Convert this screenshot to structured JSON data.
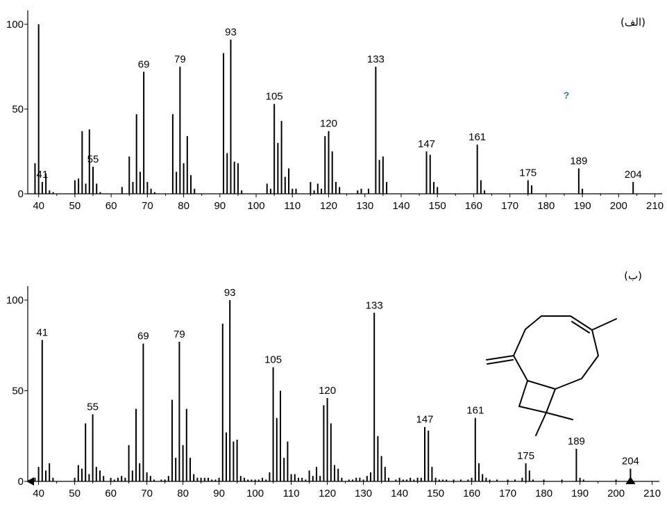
{
  "chart_data": [
    {
      "type": "bar",
      "panel_label": "(الف)",
      "annotation": "?",
      "annotation_color": "#2a8080",
      "bar_color": "#000000",
      "xlim": [
        37,
        212
      ],
      "ylim": [
        0,
        100
      ],
      "xticks": [
        40,
        50,
        60,
        70,
        80,
        90,
        100,
        110,
        120,
        130,
        140,
        150,
        160,
        170,
        180,
        190,
        200,
        210
      ],
      "yticks": [
        0,
        50,
        100
      ],
      "x": [
        39,
        40,
        41,
        42,
        43,
        44,
        50,
        51,
        52,
        53,
        54,
        55,
        56,
        57,
        63,
        65,
        66,
        67,
        68,
        69,
        70,
        71,
        72,
        77,
        78,
        79,
        80,
        81,
        82,
        83,
        91,
        92,
        93,
        94,
        95,
        96,
        103,
        104,
        105,
        106,
        107,
        108,
        109,
        110,
        111,
        115,
        116,
        117,
        118,
        119,
        120,
        121,
        122,
        123,
        128,
        129,
        131,
        133,
        134,
        135,
        136,
        147,
        148,
        149,
        150,
        161,
        162,
        163,
        175,
        176,
        189,
        190,
        204
      ],
      "y": [
        18,
        100,
        7,
        12,
        2,
        1,
        8,
        9,
        37,
        6,
        38,
        16,
        6,
        1,
        4,
        22,
        7,
        47,
        13,
        72,
        7,
        3,
        1,
        47,
        13,
        75,
        18,
        34,
        11,
        3,
        83,
        24,
        91,
        19,
        18,
        2,
        6,
        3,
        53,
        30,
        43,
        10,
        15,
        3,
        3,
        7,
        2,
        6,
        3,
        34,
        37,
        25,
        7,
        4,
        2,
        3,
        3,
        75,
        20,
        22,
        7,
        25,
        23,
        7,
        4,
        29,
        8,
        2,
        8,
        5,
        15,
        3,
        7
      ],
      "labeled_peaks": [
        41,
        55,
        69,
        79,
        93,
        105,
        120,
        133,
        147,
        161,
        175,
        189,
        204
      ]
    },
    {
      "type": "bar",
      "panel_label": "(ب)",
      "bar_color": "#000000",
      "xlim": [
        37,
        212
      ],
      "ylim": [
        0,
        100
      ],
      "xticks": [
        40,
        50,
        60,
        70,
        80,
        90,
        100,
        110,
        120,
        130,
        140,
        150,
        160,
        170,
        180,
        190,
        200,
        210
      ],
      "yticks": [
        0,
        50,
        100
      ],
      "x": [
        39,
        40,
        41,
        42,
        43,
        44,
        50,
        51,
        52,
        53,
        54,
        55,
        56,
        57,
        58,
        60,
        61,
        62,
        63,
        64,
        65,
        66,
        67,
        68,
        69,
        70,
        71,
        72,
        74,
        75,
        76,
        77,
        78,
        79,
        80,
        81,
        82,
        83,
        84,
        85,
        86,
        87,
        88,
        89,
        90,
        91,
        92,
        93,
        94,
        95,
        96,
        97,
        98,
        99,
        100,
        101,
        102,
        103,
        104,
        105,
        106,
        107,
        108,
        109,
        110,
        111,
        112,
        113,
        114,
        115,
        116,
        117,
        118,
        119,
        120,
        121,
        122,
        123,
        124,
        126,
        127,
        128,
        129,
        130,
        131,
        132,
        133,
        134,
        135,
        136,
        137,
        139,
        140,
        141,
        142,
        143,
        144,
        145,
        146,
        147,
        148,
        149,
        150,
        151,
        152,
        153,
        155,
        157,
        159,
        160,
        161,
        162,
        163,
        164,
        165,
        167,
        170,
        172,
        174,
        175,
        176,
        177,
        180,
        185,
        189,
        190,
        191,
        200,
        204
      ],
      "y": [
        2,
        8,
        78,
        6,
        10,
        2,
        2,
        9,
        7,
        32,
        4,
        37,
        8,
        6,
        3,
        2,
        1,
        2,
        3,
        2,
        20,
        6,
        40,
        10,
        76,
        5,
        3,
        1,
        1,
        1,
        3,
        45,
        13,
        77,
        20,
        40,
        13,
        4,
        2,
        2,
        2,
        2,
        1,
        1,
        2,
        87,
        27,
        100,
        22,
        23,
        3,
        2,
        1,
        1,
        1,
        1,
        2,
        1,
        5,
        63,
        35,
        50,
        13,
        22,
        4,
        4,
        2,
        2,
        1,
        6,
        3,
        8,
        3,
        42,
        46,
        32,
        9,
        7,
        2,
        1,
        1,
        2,
        2,
        1,
        3,
        5,
        93,
        25,
        14,
        8,
        2,
        1,
        2,
        1,
        1,
        2,
        1,
        2,
        2,
        30,
        28,
        8,
        2,
        1,
        1,
        1,
        1,
        1,
        1,
        2,
        35,
        10,
        4,
        2,
        1,
        1,
        1,
        1,
        2,
        10,
        6,
        1,
        1,
        1,
        18,
        2,
        1,
        1,
        7
      ],
      "labeled_peaks": [
        41,
        55,
        69,
        79,
        93,
        105,
        120,
        133,
        147,
        161,
        175,
        189,
        204
      ]
    }
  ]
}
